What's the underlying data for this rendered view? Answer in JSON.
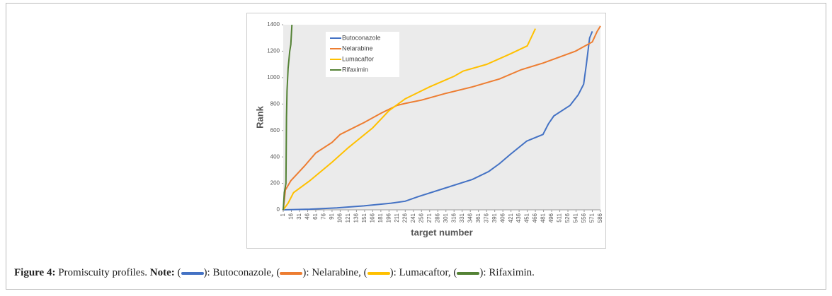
{
  "chart_data": {
    "type": "line",
    "y_label": "Rank",
    "x_label": "target number",
    "xlim": [
      1,
      586
    ],
    "ylim": [
      0,
      1400
    ],
    "yticks": [
      0,
      200,
      400,
      600,
      800,
      1000,
      1200,
      1400
    ],
    "xticks": [
      1,
      16,
      31,
      46,
      61,
      76,
      91,
      106,
      121,
      136,
      151,
      166,
      181,
      196,
      211,
      226,
      241,
      256,
      271,
      286,
      301,
      316,
      331,
      346,
      361,
      376,
      391,
      406,
      421,
      436,
      451,
      466,
      481,
      496,
      511,
      526,
      541,
      556,
      571,
      586
    ],
    "legend": "upper left",
    "background": "#ebebeb",
    "series": [
      {
        "name": "Butoconazole",
        "color": "#4472c4",
        "x": [
          1,
          50,
          100,
          150,
          200,
          226,
          250,
          300,
          350,
          380,
          400,
          420,
          450,
          480,
          490,
          500,
          530,
          545,
          555,
          560,
          566,
          571
        ],
        "values": [
          0,
          5,
          15,
          30,
          50,
          65,
          100,
          165,
          230,
          290,
          350,
          420,
          520,
          570,
          650,
          710,
          790,
          870,
          950,
          1100,
          1300,
          1350
        ]
      },
      {
        "name": "Nelarabine",
        "color": "#ed7d31",
        "x": [
          1,
          5,
          15,
          40,
          61,
          91,
          106,
          150,
          181,
          211,
          226,
          256,
          300,
          350,
          400,
          440,
          480,
          520,
          540,
          571,
          580,
          586
        ],
        "values": [
          0,
          150,
          220,
          330,
          430,
          510,
          570,
          660,
          730,
          790,
          805,
          830,
          880,
          930,
          990,
          1060,
          1110,
          1170,
          1200,
          1270,
          1350,
          1390
        ]
      },
      {
        "name": "Lumacaftor",
        "color": "#ffc000",
        "x": [
          1,
          10,
          20,
          50,
          91,
          121,
          166,
          196,
          226,
          271,
          316,
          333,
          376,
          420,
          451,
          466
        ],
        "values": [
          0,
          50,
          130,
          220,
          360,
          470,
          620,
          750,
          840,
          930,
          1010,
          1050,
          1100,
          1180,
          1240,
          1370
        ]
      },
      {
        "name": "Rifaximin",
        "color": "#548235",
        "x": [
          1,
          3,
          6,
          7,
          8,
          10,
          13,
          15,
          17
        ],
        "values": [
          0,
          130,
          200,
          700,
          900,
          1070,
          1200,
          1250,
          1400
        ]
      }
    ]
  },
  "caption": {
    "label": "Figure 4:",
    "text": "Promiscuity profiles.",
    "note": "Note:",
    "open": "(",
    "items": [
      "): Butoconazole,",
      "): Nelarabine,",
      "): Lumacaftor,",
      "): Rifaximin."
    ]
  }
}
